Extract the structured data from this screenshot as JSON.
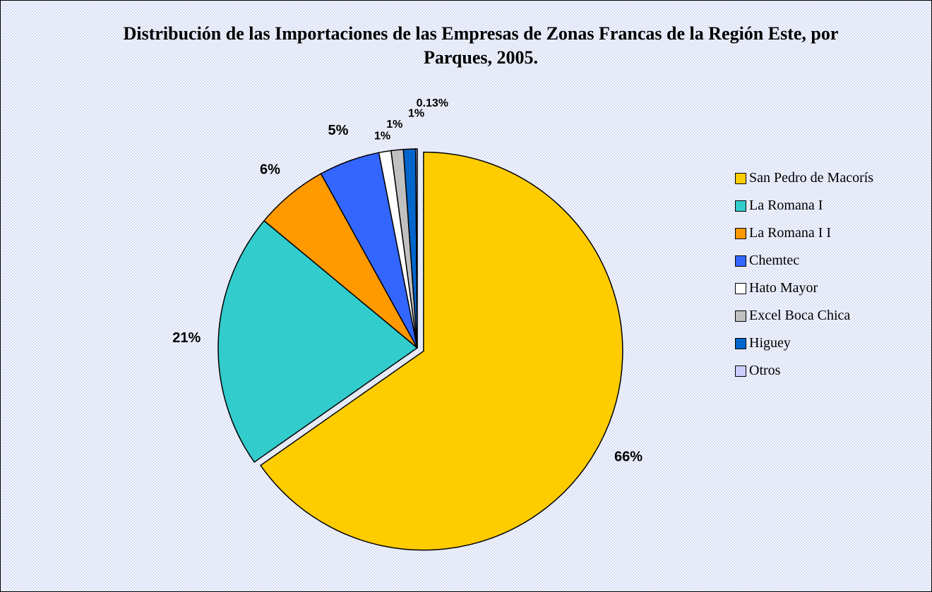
{
  "chart_data": {
    "type": "pie",
    "title": "Distribución de las Importaciones de las Empresas de Zonas Francas de la Región Este, por Parques, 2005.",
    "categories": [
      "San Pedro de Macorís",
      "La Romana I",
      "La Romana I I",
      "Chemtec",
      "Hato Mayor",
      "Excel Boca Chica",
      "Higuey",
      "Otros"
    ],
    "values": [
      66,
      21,
      6,
      5,
      1,
      1,
      1,
      0.13
    ],
    "value_labels": [
      "66%",
      "21%",
      "6%",
      "5%",
      "1%",
      "1%",
      "1%",
      "0.13%"
    ],
    "colors": [
      "#ffcc00",
      "#33cccc",
      "#ff9900",
      "#3366ff",
      "#ffffff",
      "#c0c0c0",
      "#0066cc",
      "#ccccff"
    ],
    "legend": "right"
  }
}
